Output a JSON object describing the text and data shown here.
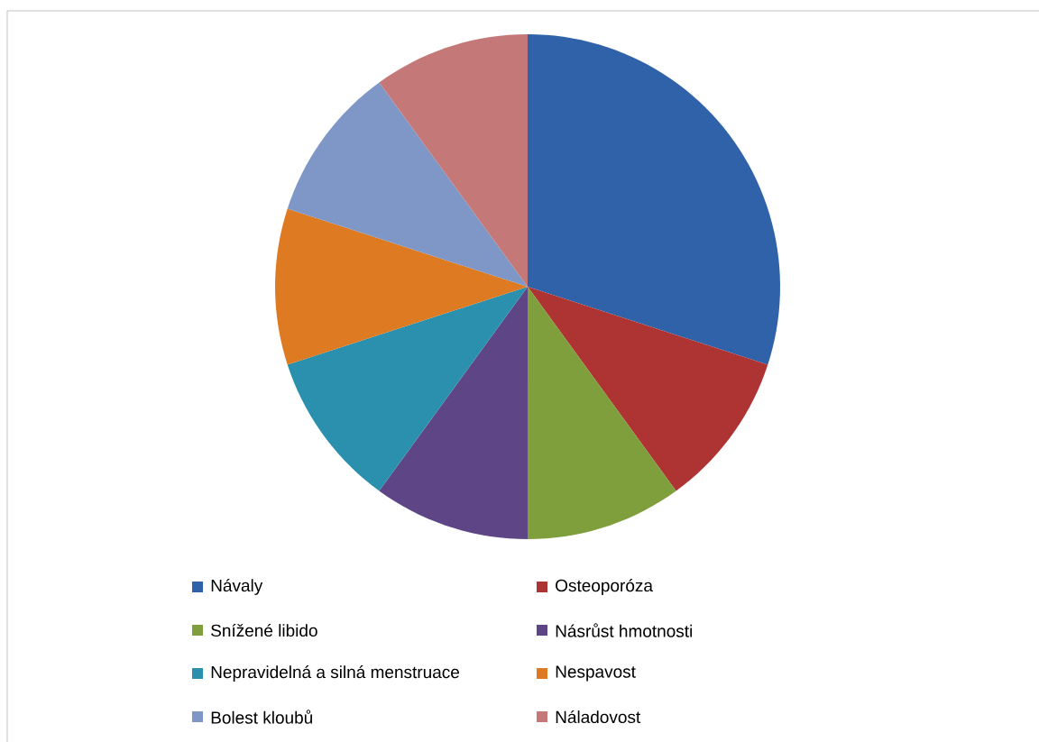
{
  "chart_data": {
    "type": "pie",
    "categories": [
      "Návaly",
      "Osteoporóza",
      "Snížené libido",
      "Násrůst hmotnosti",
      "Nepravidelná a silná menstruace",
      "Nespavost",
      "Bolest kloubů",
      "Náladovost"
    ],
    "values": [
      30,
      10,
      10,
      10,
      10,
      10,
      10,
      10
    ],
    "colors": [
      "#2f62a8",
      "#ad3432",
      "#7f9f3c",
      "#5e4585",
      "#2a90ae",
      "#de7a22",
      "#7e97c6",
      "#c47877"
    ],
    "legend": "bottom"
  }
}
